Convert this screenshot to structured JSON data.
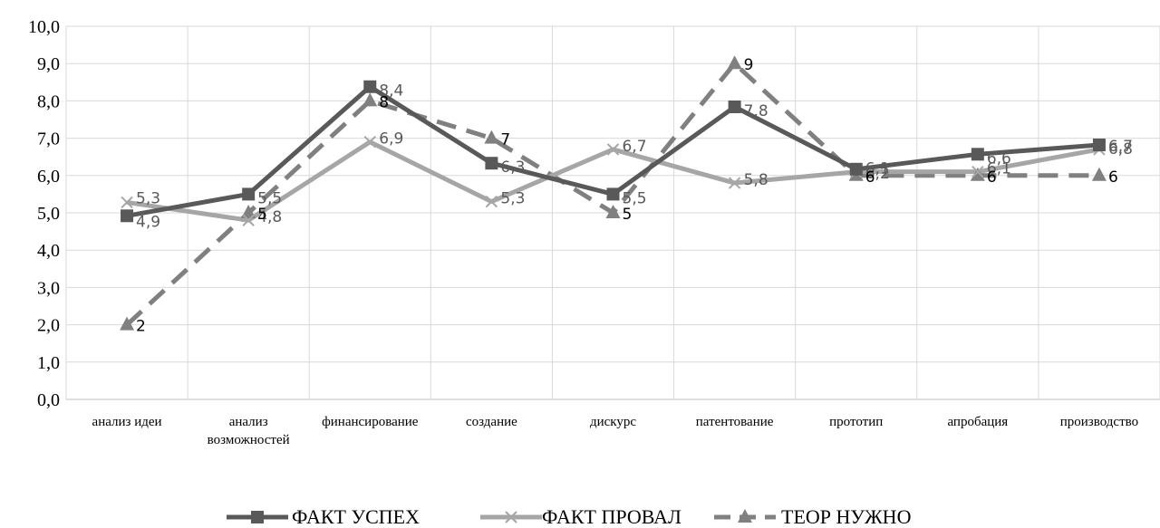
{
  "chart_data": {
    "type": "line",
    "categories": [
      [
        "анализ идеи"
      ],
      [
        "анализ",
        "возможностей"
      ],
      [
        "финансирование"
      ],
      [
        "создание"
      ],
      [
        "дискурс"
      ],
      [
        "патентование"
      ],
      [
        "прототип"
      ],
      [
        "апробация"
      ],
      [
        "производство"
      ]
    ],
    "ylim": [
      0,
      10
    ],
    "yticks": [
      "0,0",
      "1,0",
      "2,0",
      "3,0",
      "4,0",
      "5,0",
      "6,0",
      "7,0",
      "8,0",
      "9,0",
      "10,0"
    ],
    "grid": "vertical and horizontal",
    "legend_position": "bottom",
    "series": [
      {
        "name": "ФАКТ УСПЕХ",
        "values": [
          4.92,
          5.5,
          8.38,
          6.33,
          5.5,
          7.84,
          6.17,
          6.57,
          6.82
        ],
        "labels": [
          "4,9",
          "5,5",
          "8,4",
          "6,3",
          "5,5",
          "7,8",
          "6,2",
          "6,6",
          "6,8"
        ],
        "color": "#595959",
        "label_color": "#595959",
        "marker": "square",
        "dash": "solid"
      },
      {
        "name": "ФАКТ ПРОВАЛ",
        "values": [
          5.28,
          4.8,
          6.9,
          5.3,
          6.7,
          5.8,
          6.1,
          6.1,
          6.7
        ],
        "labels": [
          "5,3",
          "4,8",
          "6,9",
          "5,3",
          "6,7",
          "5,8",
          "6,1",
          "6,1",
          "6,7"
        ],
        "color": "#a6a6a6",
        "label_color": "#595959",
        "marker": "x",
        "dash": "solid"
      },
      {
        "name": "ТЕОР НУЖНО",
        "values": [
          2,
          5,
          8,
          7,
          5,
          9,
          6,
          6,
          6
        ],
        "labels": [
          "2",
          "5",
          "8",
          "7",
          "5",
          "9",
          "6",
          "6",
          "6"
        ],
        "color": "#808080",
        "label_color": "#000000",
        "marker": "triangle",
        "dash": "dashed"
      }
    ]
  }
}
